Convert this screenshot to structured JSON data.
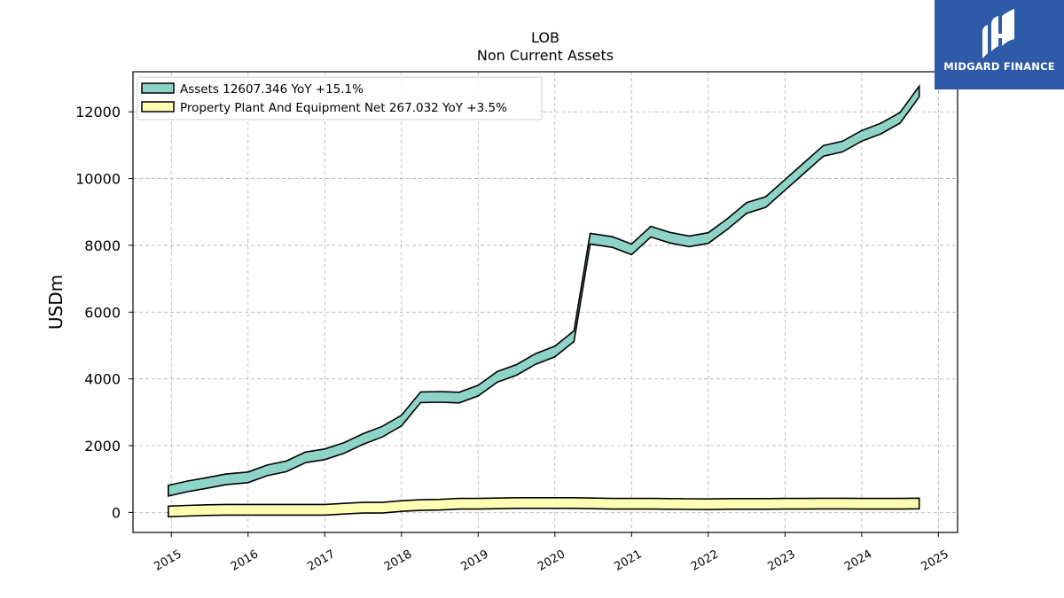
{
  "chart_data": {
    "type": "area",
    "title": "LOB",
    "subtitle": "Non Current  Assets",
    "xlabel": "",
    "ylabel": "USDm",
    "ylim": [
      -600,
      13200
    ],
    "xlim": [
      2014.5,
      2025.25
    ],
    "yticks": [
      0,
      2000,
      4000,
      6000,
      8000,
      10000,
      12000
    ],
    "xticks": [
      2015,
      2016,
      2017,
      2018,
      2019,
      2020,
      2021,
      2022,
      2023,
      2024,
      2025
    ],
    "grid": true,
    "legend_position": "top-left",
    "series": [
      {
        "name": "Assets  12607.346 YoY +15.1%",
        "color": "#8dd3c7",
        "x": [
          2014.96,
          2015.21,
          2015.46,
          2015.71,
          2016.0,
          2016.25,
          2016.5,
          2016.75,
          2017.0,
          2017.25,
          2017.5,
          2017.75,
          2018.0,
          2018.25,
          2018.5,
          2018.75,
          2019.0,
          2019.25,
          2019.5,
          2019.75,
          2020.0,
          2020.25,
          2020.46,
          2020.75,
          2021.0,
          2021.25,
          2021.5,
          2021.75,
          2022.0,
          2022.25,
          2022.5,
          2022.75,
          2023.0,
          2023.25,
          2023.5,
          2023.75,
          2024.0,
          2024.25,
          2024.5,
          2024.75
        ],
        "values": [
          650,
          780,
          880,
          990,
          1050,
          1260,
          1380,
          1650,
          1740,
          1930,
          2200,
          2420,
          2750,
          3450,
          3460,
          3440,
          3650,
          4060,
          4270,
          4600,
          4820,
          5280,
          8200,
          8100,
          7880,
          8410,
          8230,
          8120,
          8220,
          8640,
          9120,
          9300,
          9810,
          10320,
          10830,
          10960,
          11280,
          11500,
          11820,
          12607
        ]
      },
      {
        "name": "Property Plant And Equipment Net  267.032 YoY +3.5%",
        "color": "#ffffb3",
        "x": [
          2014.96,
          2015.21,
          2015.46,
          2015.71,
          2016.0,
          2016.25,
          2016.5,
          2016.75,
          2017.0,
          2017.25,
          2017.5,
          2017.75,
          2018.0,
          2018.25,
          2018.5,
          2018.75,
          2019.0,
          2019.25,
          2019.5,
          2019.75,
          2020.0,
          2020.25,
          2020.5,
          2020.75,
          2021.0,
          2021.25,
          2021.5,
          2021.75,
          2022.0,
          2022.25,
          2022.5,
          2022.75,
          2023.0,
          2023.25,
          2023.5,
          2023.75,
          2024.0,
          2024.25,
          2024.5,
          2024.75
        ],
        "values": [
          30,
          50,
          70,
          80,
          80,
          80,
          80,
          80,
          80,
          110,
          140,
          140,
          190,
          220,
          230,
          260,
          260,
          270,
          280,
          280,
          280,
          280,
          270,
          260,
          260,
          260,
          255,
          250,
          245,
          255,
          255,
          255,
          260,
          260,
          265,
          265,
          260,
          260,
          260,
          267
        ]
      }
    ]
  },
  "logo": {
    "text": "MIDGARD FINANCE",
    "color": "#2e5aa8"
  }
}
